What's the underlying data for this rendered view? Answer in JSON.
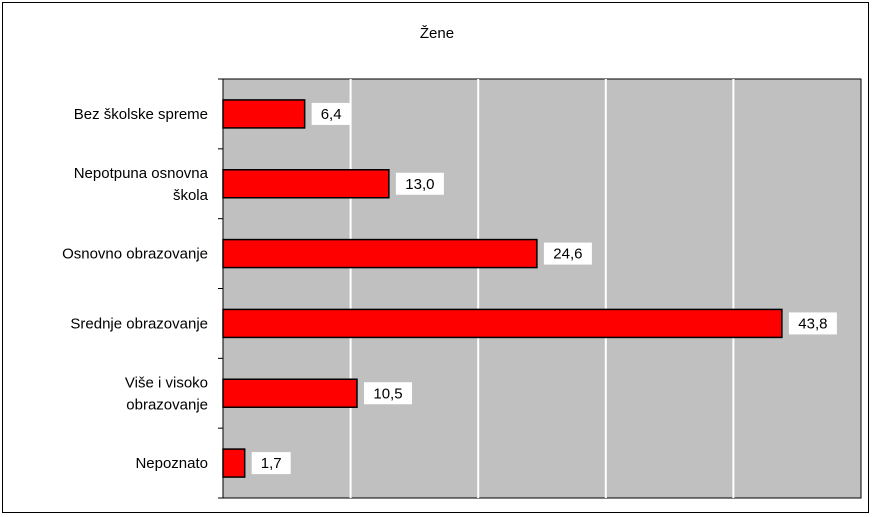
{
  "chart_data": {
    "type": "bar",
    "orientation": "horizontal",
    "title": "Žene",
    "categories": [
      "Bez školske spreme",
      "Nepotpuna osnovna škola",
      "Osnovno obrazovanje",
      "Srednje obrazovanje",
      "Više i visoko obrazovanje",
      "Nepoznato"
    ],
    "category_lines": [
      [
        "Bez školske spreme"
      ],
      [
        "Nepotpuna osnovna",
        "škola"
      ],
      [
        "Osnovno obrazovanje"
      ],
      [
        "Srednje obrazovanje"
      ],
      [
        "Više i visoko",
        "obrazovanje"
      ],
      [
        "Nepoznato"
      ]
    ],
    "values": [
      6.4,
      13.0,
      24.6,
      43.8,
      10.5,
      1.7
    ],
    "value_labels": [
      "6,4",
      "13,0",
      "24,6",
      "43,8",
      "10,5",
      "1,7"
    ],
    "xlim": [
      0,
      50
    ],
    "x_gridlines": [
      10,
      20,
      30,
      40
    ],
    "x_tick_labels_visible": false,
    "grid": true,
    "legend": "none",
    "colors": {
      "bar_fill": "#ff0000",
      "bar_stroke": "#000000",
      "plot_background": "#c0c0c0",
      "gridline": "#ffffff"
    }
  }
}
